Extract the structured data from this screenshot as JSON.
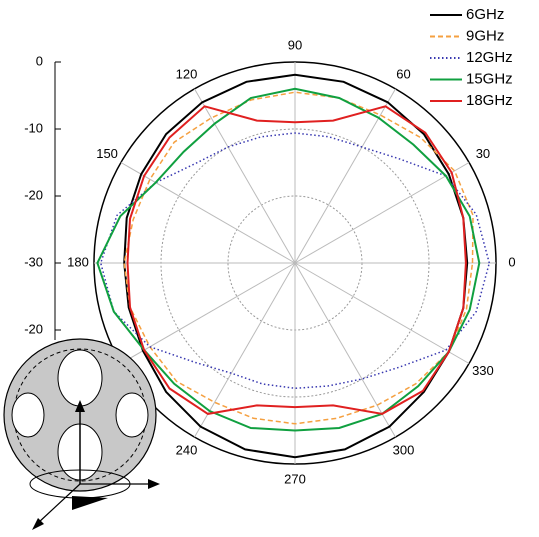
{
  "chart_data": {
    "type": "polar",
    "theta": [
      0,
      15,
      30,
      45,
      60,
      75,
      90,
      105,
      120,
      135,
      150,
      165,
      180,
      195,
      210,
      225,
      240,
      255,
      270,
      285,
      300,
      315,
      330,
      345
    ],
    "series": [
      {
        "name": "6GHz",
        "color": "#000000",
        "dash": "solid",
        "values": [
          -4.3,
          -4,
          -3.5,
          -2.8,
          -2.3,
          -2,
          -1.9,
          -2,
          -2.3,
          -2.8,
          -3.5,
          -4,
          -4.5,
          -4.3,
          -3.8,
          -2.8,
          -1.8,
          -1.2,
          -1,
          -1.2,
          -1.8,
          -2.8,
          -3.5,
          -4
        ]
      },
      {
        "name": "9GHz",
        "color": "#f5a040",
        "dash": "dashed",
        "values": [
          -3.5,
          -2.5,
          -2.5,
          -3.5,
          -4.5,
          -4.5,
          -4.5,
          -4.8,
          -5,
          -4.5,
          -5,
          -5,
          -4.5,
          -4.5,
          -5,
          -5,
          -6,
          -6,
          -6,
          -6,
          -5.5,
          -4.5,
          -3.5,
          -3.5
        ]
      },
      {
        "name": "12GHz",
        "color": "#3838b0",
        "dash": "dotted",
        "values": [
          -1,
          -2,
          -4,
          -8,
          -10,
          -10.5,
          -10.6,
          -10.5,
          -10,
          -9,
          -6,
          -2.5,
          -1,
          -2,
          -5,
          -9,
          -11,
          -11.3,
          -11.3,
          -11,
          -10,
          -8,
          -4,
          -2
        ]
      },
      {
        "name": "15GHz",
        "color": "#10a040",
        "dash": "solid",
        "values": [
          -2.5,
          -3,
          -4,
          -5,
          -5,
          -4.5,
          -4,
          -4.5,
          -6,
          -6.5,
          -6,
          -3,
          -0.5,
          -2,
          -4,
          -4.5,
          -4.5,
          -4.5,
          -5,
          -4.5,
          -4,
          -4,
          -3.5,
          -3
        ]
      },
      {
        "name": "18GHz",
        "color": "#e02020",
        "dash": "solid",
        "values": [
          -4.5,
          -4,
          -3,
          -2.5,
          -3,
          -8,
          -9,
          -8,
          -3,
          -3.5,
          -4,
          -4.5,
          -5,
          -4.5,
          -4,
          -3.5,
          -4,
          -8,
          -8.5,
          -8,
          -4,
          -3,
          -3.5,
          -4
        ]
      }
    ],
    "rlim": [
      -30,
      0
    ],
    "rticks": [
      0,
      -10,
      -20,
      -30
    ],
    "rticks_below": [
      -20
    ],
    "thetaticks": [
      0,
      30,
      60,
      90,
      120,
      150,
      180,
      {
        "value": 210,
        "label": null
      },
      240,
      270,
      300,
      330
    ],
    "grid": true
  }
}
